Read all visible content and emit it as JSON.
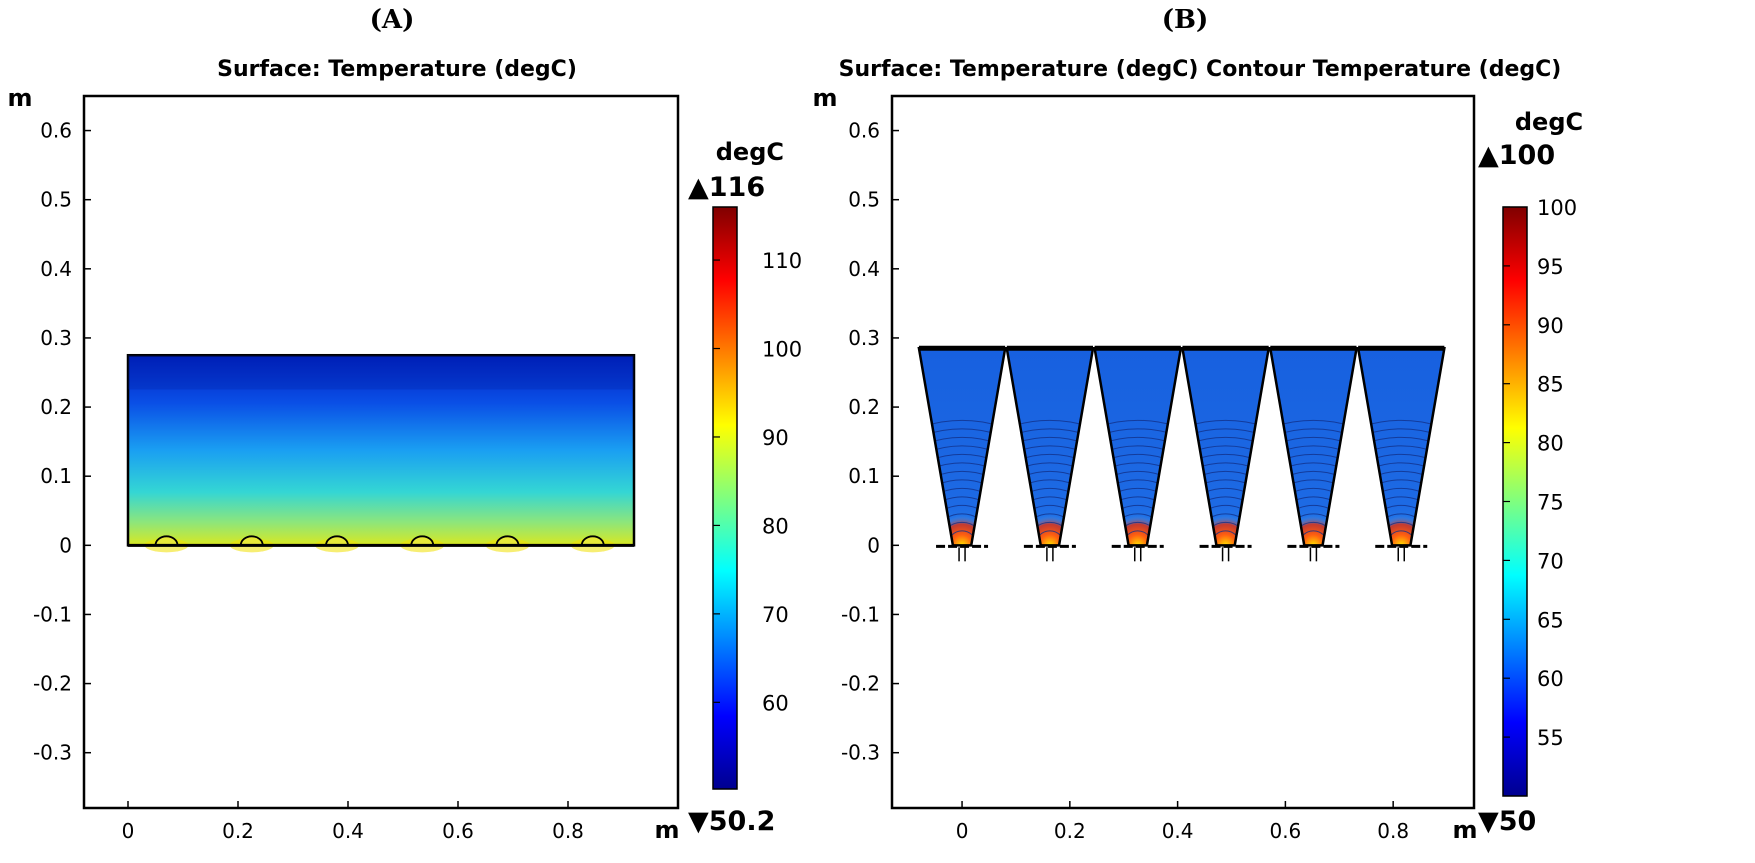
{
  "chart_data": [
    {
      "type": "heatmap",
      "panel_label": "(A)",
      "title": "Surface: Temperature (degC)",
      "xlabel": "m",
      "ylabel": "m",
      "xlim": [
        -0.08,
        1.0
      ],
      "ylim": [
        -0.38,
        0.65
      ],
      "x_ticks": [
        0,
        0.2,
        0.4,
        0.6,
        0.8
      ],
      "x_tick_labels": [
        "0",
        "0.2",
        "0.4",
        "0.6",
        "0.8"
      ],
      "y_ticks": [
        0.6,
        0.5,
        0.4,
        0.3,
        0.2,
        0.1,
        0,
        -0.1,
        -0.2,
        -0.3
      ],
      "y_tick_labels": [
        "0.6",
        "0.5",
        "0.4",
        "0.3",
        "0.2",
        "0.1",
        "0",
        "-0.1",
        "-0.2",
        "-0.3"
      ],
      "domain": {
        "shape": "rectangle",
        "x": [
          0,
          0.92
        ],
        "y": [
          0,
          0.275
        ]
      },
      "heat_sources_x": [
        0.07,
        0.225,
        0.38,
        0.535,
        0.69,
        0.845
      ],
      "colorbar": {
        "unit": "degC",
        "max_label": "▲116",
        "min_label": "▼50.2",
        "range": [
          50.2,
          116
        ],
        "ticks": [
          110,
          100,
          90,
          80,
          70,
          60
        ],
        "tick_labels": [
          "110",
          "100",
          "90",
          "80",
          "70",
          "60"
        ]
      },
      "colors": {
        "domain_top": "#0026c4",
        "domain_bottom": "#cbe62a"
      }
    },
    {
      "type": "heatmap",
      "panel_label": "(B)",
      "title": "Surface: Temperature (degC) Contour Temperature (degC)",
      "xlabel": "m",
      "ylabel": "m",
      "xlim": [
        -0.13,
        0.95
      ],
      "ylim": [
        -0.38,
        0.65
      ],
      "x_ticks": [
        0,
        0.2,
        0.4,
        0.6,
        0.8
      ],
      "x_tick_labels": [
        "0",
        "0.2",
        "0.4",
        "0.6",
        "0.8"
      ],
      "y_ticks": [
        0.6,
        0.5,
        0.4,
        0.3,
        0.2,
        0.1,
        0,
        -0.1,
        -0.2,
        -0.3
      ],
      "y_tick_labels": [
        "0.6",
        "0.5",
        "0.4",
        "0.3",
        "0.2",
        "0.1",
        "0",
        "-0.1",
        "-0.2",
        "-0.3"
      ],
      "domain": {
        "shape": "trapezoids",
        "count": 6,
        "top_y": 0.285,
        "bottom_y": 0.0,
        "top_half_width": 0.08,
        "bottom_half_width": 0.017
      },
      "trapezoid_centers_x": [
        0,
        0.163,
        0.326,
        0.489,
        0.652,
        0.815
      ],
      "contour_count": 14,
      "colorbar": {
        "unit": "degC",
        "max_label": "▲100",
        "min_label": "▼50",
        "range": [
          50,
          100
        ],
        "ticks": [
          100,
          95,
          90,
          85,
          80,
          75,
          70,
          65,
          60,
          55
        ],
        "tick_labels": [
          "100",
          "95",
          "90",
          "85",
          "80",
          "75",
          "70",
          "65",
          "60",
          "55"
        ]
      },
      "colors": {
        "domain_fill": "#1b63e0"
      }
    }
  ]
}
